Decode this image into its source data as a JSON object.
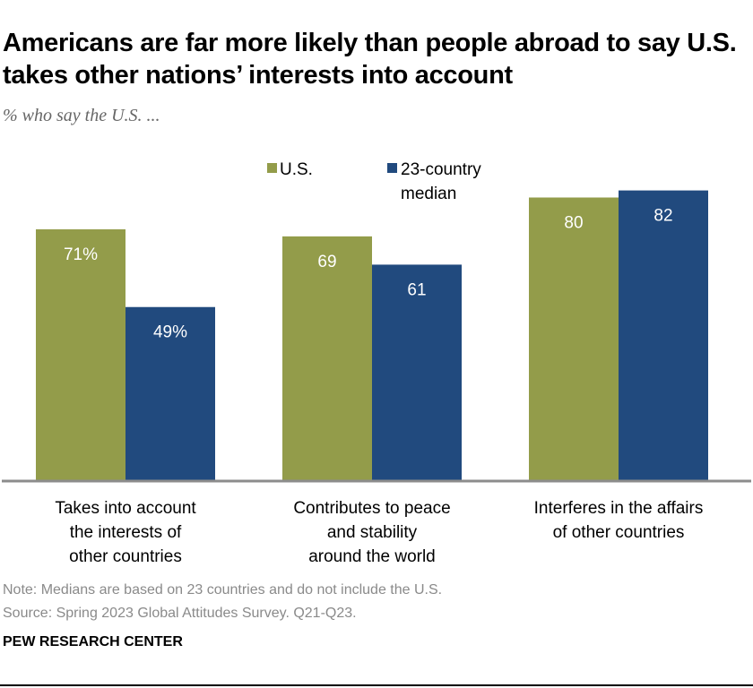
{
  "title": "Americans are far more likely than people abroad to say U.S. takes other nations’ interests into account",
  "subtitle": "% who say the U.S. ...",
  "chart_data": {
    "type": "bar",
    "categories": [
      [
        "Takes into account",
        "the interests of",
        "other countries"
      ],
      [
        "Contributes to peace",
        "and stability",
        "around the world"
      ],
      [
        "Interferes in the affairs",
        "of other countries"
      ]
    ],
    "series": [
      {
        "name": "U.S.",
        "values": [
          71,
          69,
          80
        ],
        "labels": [
          "71%",
          "69",
          "80"
        ],
        "color": "#939c4a"
      },
      {
        "name": "23-country median",
        "legend_lines": [
          "23-country",
          "median"
        ],
        "values": [
          49,
          61,
          82
        ],
        "labels": [
          "49%",
          "61",
          "82"
        ],
        "color": "#214a7e"
      }
    ],
    "ylim": [
      0,
      100
    ],
    "grid": false,
    "legend": "top-center"
  },
  "note": "Note: Medians are based on 23 countries and do not include the U.S.",
  "source": "Source: Spring 2023 Global Attitudes Survey. Q21-Q23.",
  "brand": "PEW RESEARCH CENTER"
}
